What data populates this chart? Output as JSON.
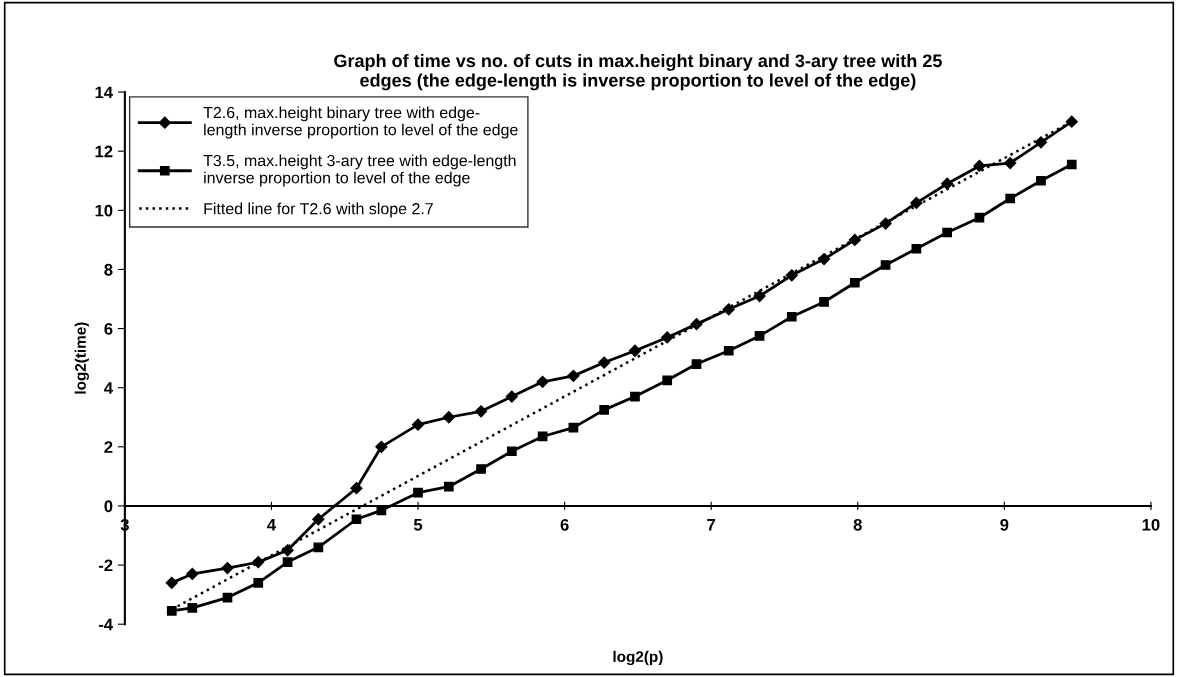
{
  "chart_data": {
    "type": "line",
    "title": "Graph of time vs no. of cuts in max.height binary and 3-ary tree with 25\nedges (the edge-length is inverse proportion to level of the edge)",
    "xlabel": "log2(p)",
    "ylabel": "log2(time)",
    "x": [
      3.32,
      3.46,
      3.7,
      3.91,
      4.11,
      4.32,
      4.58,
      4.75,
      5.0,
      5.21,
      5.43,
      5.64,
      5.85,
      6.06,
      6.27,
      6.48,
      6.7,
      6.9,
      7.12,
      7.33,
      7.55,
      7.77,
      7.98,
      8.19,
      8.4,
      8.61,
      8.83,
      9.04,
      9.25,
      9.46
    ],
    "series": [
      {
        "name": "T2.6, max.height binary tree with edge-\nlength inverse proportion to level of the edge",
        "color": "#000000",
        "marker": "diamond",
        "line_style": "solid",
        "values": [
          -2.6,
          -2.3,
          -2.1,
          -1.9,
          -1.5,
          -0.45,
          0.6,
          2.0,
          2.75,
          3.0,
          3.2,
          3.7,
          4.2,
          4.4,
          4.85,
          5.25,
          5.7,
          6.15,
          6.65,
          7.1,
          7.8,
          8.35,
          9.0,
          9.55,
          10.25,
          10.9,
          11.5,
          11.6,
          12.3,
          13.0
        ]
      },
      {
        "name": "T3.5, max.height 3-ary tree with edge-length\ninverse proportion to level of the edge",
        "color": "#000000",
        "marker": "square",
        "line_style": "solid",
        "values": [
          -3.55,
          -3.45,
          -3.1,
          -2.6,
          -1.9,
          -1.4,
          -0.45,
          -0.15,
          0.45,
          0.65,
          1.25,
          1.85,
          2.35,
          2.65,
          3.25,
          3.7,
          4.25,
          4.8,
          5.25,
          5.75,
          6.4,
          6.9,
          7.55,
          8.15,
          8.7,
          9.25,
          9.75,
          10.4,
          11.0,
          11.55
        ]
      },
      {
        "name": "Fitted line for T2.6 with slope 2.7",
        "color": "#000000",
        "marker": "none",
        "line_style": "dotted",
        "x": [
          3.32,
          9.46
        ],
        "values": [
          -3.5,
          13.0
        ]
      }
    ],
    "xlim": [
      3,
      10
    ],
    "xticks": [
      3,
      4,
      5,
      6,
      7,
      8,
      9,
      10
    ],
    "ylim": [
      -4,
      14
    ],
    "yticks": [
      -4,
      -2,
      0,
      2,
      4,
      6,
      8,
      10,
      12,
      14
    ],
    "grid": false,
    "legend": "top left"
  }
}
